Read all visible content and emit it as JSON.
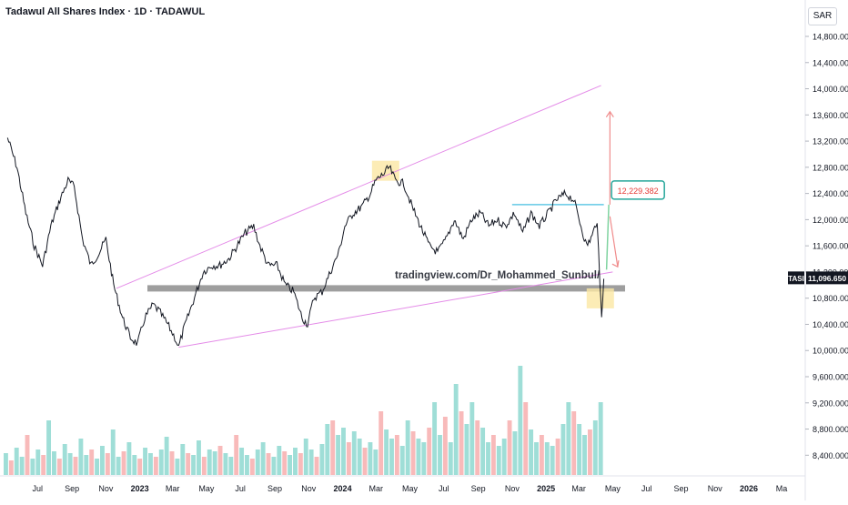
{
  "header": {
    "title": "Tadawul All Shares Index · 1D · TADAWUL",
    "currency": "SAR"
  },
  "watermark": "tradingview.com/Dr_Mohammed_Sunbul/",
  "colors": {
    "price": "#131722",
    "channel": "#e48be8",
    "support_zone": "#9e9e9e",
    "highlight": "#fbe7a4",
    "resistance": "#63c9e5",
    "target_arrow": "#f08b8b",
    "target_box": "#26a69a",
    "target_text": "#e53935",
    "volume_up": "#7fd3c9",
    "volume_down": "#f5a3a3",
    "last_price_bg": "#131722"
  },
  "annotations": {
    "target_label": "12,229.382",
    "last_symbol": "TASI",
    "last_price": "11,096.650"
  },
  "chart_data": {
    "type": "line",
    "title": "Tadawul All Shares Index · 1D · TADAWUL",
    "y_unit": "SAR",
    "ylim": [
      8250,
      15250
    ],
    "y_ticks": [
      "8,400.000",
      "8,800.000",
      "9,200.000",
      "9,600.000",
      "10,000.000",
      "10,400.000",
      "10,800.000",
      "11,200.000",
      "11,600.000",
      "12,000.000",
      "12,400.000",
      "12,800.000",
      "13,200.000",
      "13,600.000",
      "14,000.000",
      "14,400.000",
      "14,800.000"
    ],
    "x_ticks": [
      "Jul",
      "Sep",
      "Nov",
      "2023",
      "Mar",
      "May",
      "Jul",
      "Sep",
      "Nov",
      "2024",
      "Mar",
      "May",
      "Jul",
      "Sep",
      "Nov",
      "2025",
      "Mar",
      "May",
      "Jul",
      "Sep",
      "Nov",
      "2026",
      "Ma"
    ],
    "x_start": "2022-05",
    "series": [
      {
        "points": [
          [
            "2022-05-08",
            13250
          ],
          [
            "2022-05-25",
            12800
          ],
          [
            "2022-06-10",
            12100
          ],
          [
            "2022-06-25",
            11600
          ],
          [
            "2022-07-10",
            11300
          ],
          [
            "2022-07-25",
            11900
          ],
          [
            "2022-08-10",
            12300
          ],
          [
            "2022-08-25",
            12600
          ],
          [
            "2022-09-05",
            12500
          ],
          [
            "2022-09-20",
            11700
          ],
          [
            "2022-10-05",
            11300
          ],
          [
            "2022-10-20",
            11500
          ],
          [
            "2022-11-01",
            11700
          ],
          [
            "2022-11-15",
            11000
          ],
          [
            "2022-12-01",
            10500
          ],
          [
            "2022-12-15",
            10200
          ],
          [
            "2022-12-28",
            10100
          ],
          [
            "2023-01-10",
            10500
          ],
          [
            "2023-01-25",
            10700
          ],
          [
            "2023-02-05",
            10600
          ],
          [
            "2023-02-20",
            10400
          ],
          [
            "2023-03-05",
            10200
          ],
          [
            "2023-03-12",
            10050
          ],
          [
            "2023-03-20",
            10300
          ],
          [
            "2023-04-05",
            10700
          ],
          [
            "2023-04-25",
            11200
          ],
          [
            "2023-05-10",
            11300
          ],
          [
            "2023-05-25",
            11300
          ],
          [
            "2023-06-10",
            11400
          ],
          [
            "2023-06-25",
            11600
          ],
          [
            "2023-07-10",
            11800
          ],
          [
            "2023-07-25",
            11900
          ],
          [
            "2023-08-05",
            11600
          ],
          [
            "2023-08-20",
            11300
          ],
          [
            "2023-09-05",
            11300
          ],
          [
            "2023-09-20",
            11000
          ],
          [
            "2023-10-05",
            10900
          ],
          [
            "2023-10-20",
            10500
          ],
          [
            "2023-10-30",
            10400
          ],
          [
            "2023-11-10",
            10800
          ],
          [
            "2023-11-25",
            10900
          ],
          [
            "2023-12-10",
            11200
          ],
          [
            "2023-12-25",
            11500
          ],
          [
            "2024-01-05",
            11900
          ],
          [
            "2024-01-20",
            12100
          ],
          [
            "2024-02-05",
            12200
          ],
          [
            "2024-02-20",
            12400
          ],
          [
            "2024-03-01",
            12600
          ],
          [
            "2024-03-15",
            12700
          ],
          [
            "2024-03-25",
            12800
          ],
          [
            "2024-04-05",
            12600
          ],
          [
            "2024-04-20",
            12550
          ],
          [
            "2024-05-05",
            12200
          ],
          [
            "2024-05-20",
            11900
          ],
          [
            "2024-06-05",
            11600
          ],
          [
            "2024-06-20",
            11500
          ],
          [
            "2024-07-05",
            11700
          ],
          [
            "2024-07-20",
            12000
          ],
          [
            "2024-08-05",
            11700
          ],
          [
            "2024-08-20",
            12000
          ],
          [
            "2024-09-05",
            12100
          ],
          [
            "2024-09-20",
            11900
          ],
          [
            "2024-10-05",
            12000
          ],
          [
            "2024-10-20",
            11900
          ],
          [
            "2024-11-05",
            12100
          ],
          [
            "2024-11-20",
            11800
          ],
          [
            "2024-12-05",
            12100
          ],
          [
            "2024-12-20",
            11900
          ],
          [
            "2025-01-05",
            12100
          ],
          [
            "2025-01-20",
            12300
          ],
          [
            "2025-02-05",
            12400
          ],
          [
            "2025-02-20",
            12300
          ],
          [
            "2025-03-05",
            11900
          ],
          [
            "2025-03-15",
            11600
          ],
          [
            "2025-03-25",
            11750
          ],
          [
            "2025-04-03",
            12000
          ],
          [
            "2025-04-08",
            11000
          ],
          [
            "2025-04-11",
            10550
          ],
          [
            "2025-04-15",
            11096.65
          ]
        ]
      }
    ],
    "volume": [
      12,
      8,
      15,
      10,
      22,
      9,
      14,
      11,
      30,
      13,
      9,
      17,
      12,
      10,
      20,
      11,
      14,
      9,
      16,
      12,
      25,
      10,
      13,
      18,
      11,
      9,
      15,
      12,
      10,
      14,
      21,
      13,
      9,
      17,
      12,
      11,
      19,
      10,
      14,
      13,
      16,
      12,
      10,
      22,
      15,
      11,
      9,
      14,
      18,
      12,
      10,
      16,
      13,
      11,
      15,
      12,
      20,
      14,
      10,
      17,
      28,
      30,
      22,
      26,
      18,
      24,
      20,
      15,
      18,
      14,
      35,
      25,
      20,
      22,
      16,
      30,
      24,
      20,
      18,
      26,
      40,
      22,
      32,
      18,
      50,
      35,
      28,
      40,
      30,
      26,
      18,
      22,
      16,
      20,
      30,
      24,
      60,
      40,
      25,
      18,
      22,
      18,
      16,
      20,
      28,
      40,
      35,
      28,
      22,
      25,
      30,
      40
    ],
    "channel_upper": [
      [
        "2022-11-20",
        10950
      ],
      [
        "2025-04-10",
        14050
      ]
    ],
    "channel_lower": [
      [
        "2023-03-12",
        10050
      ],
      [
        "2025-05-01",
        11200
      ]
    ],
    "support_zone": 10950,
    "resistance": 12229.382,
    "target": 12229.382,
    "target_up_to": 13650,
    "highlights": [
      "2024-03-20",
      "2025-04-12"
    ]
  }
}
